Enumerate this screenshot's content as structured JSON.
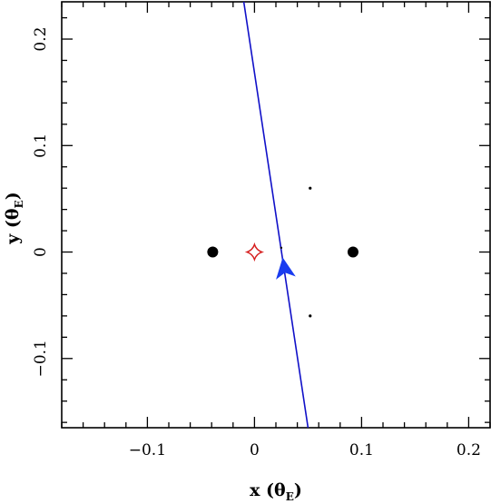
{
  "chart_data": {
    "type": "scatter",
    "title": "",
    "xlabel": "x",
    "ylabel": "y",
    "axis_unit_symbol": "θ",
    "axis_unit_subscript": "E",
    "xlim": [
      -0.18,
      0.22
    ],
    "ylim": [
      -0.165,
      0.235
    ],
    "x_ticks": [
      -0.1,
      0,
      0.1,
      0.2
    ],
    "y_ticks": [
      -0.1,
      0,
      0.1,
      0.2
    ],
    "x_tick_labels": [
      "−0.1",
      "0",
      "0.1",
      "0.2"
    ],
    "y_tick_labels": [
      "−0.1",
      "0",
      "0.1",
      "0.2"
    ],
    "grid": false,
    "lenses": [
      {
        "x": -0.039,
        "y": 0.0
      },
      {
        "x": 0.092,
        "y": 0.0
      }
    ],
    "small_points": [
      {
        "x": 0.052,
        "y": 0.06
      },
      {
        "x": 0.052,
        "y": -0.06
      },
      {
        "x": 0.025,
        "y": 0.004
      }
    ],
    "caustic": {
      "center": [
        0.0,
        0.0
      ],
      "half_size": 0.007,
      "color": "#d62020"
    },
    "trajectory": {
      "points": [
        [
          -0.01,
          0.235
        ],
        [
          0.05,
          -0.165
        ]
      ],
      "arrow_at": [
        0.028,
        -0.016
      ],
      "color": "#1010c8"
    },
    "colors": {
      "lens": "#000000",
      "trajectory_arrow": "#1a3cf0"
    }
  }
}
